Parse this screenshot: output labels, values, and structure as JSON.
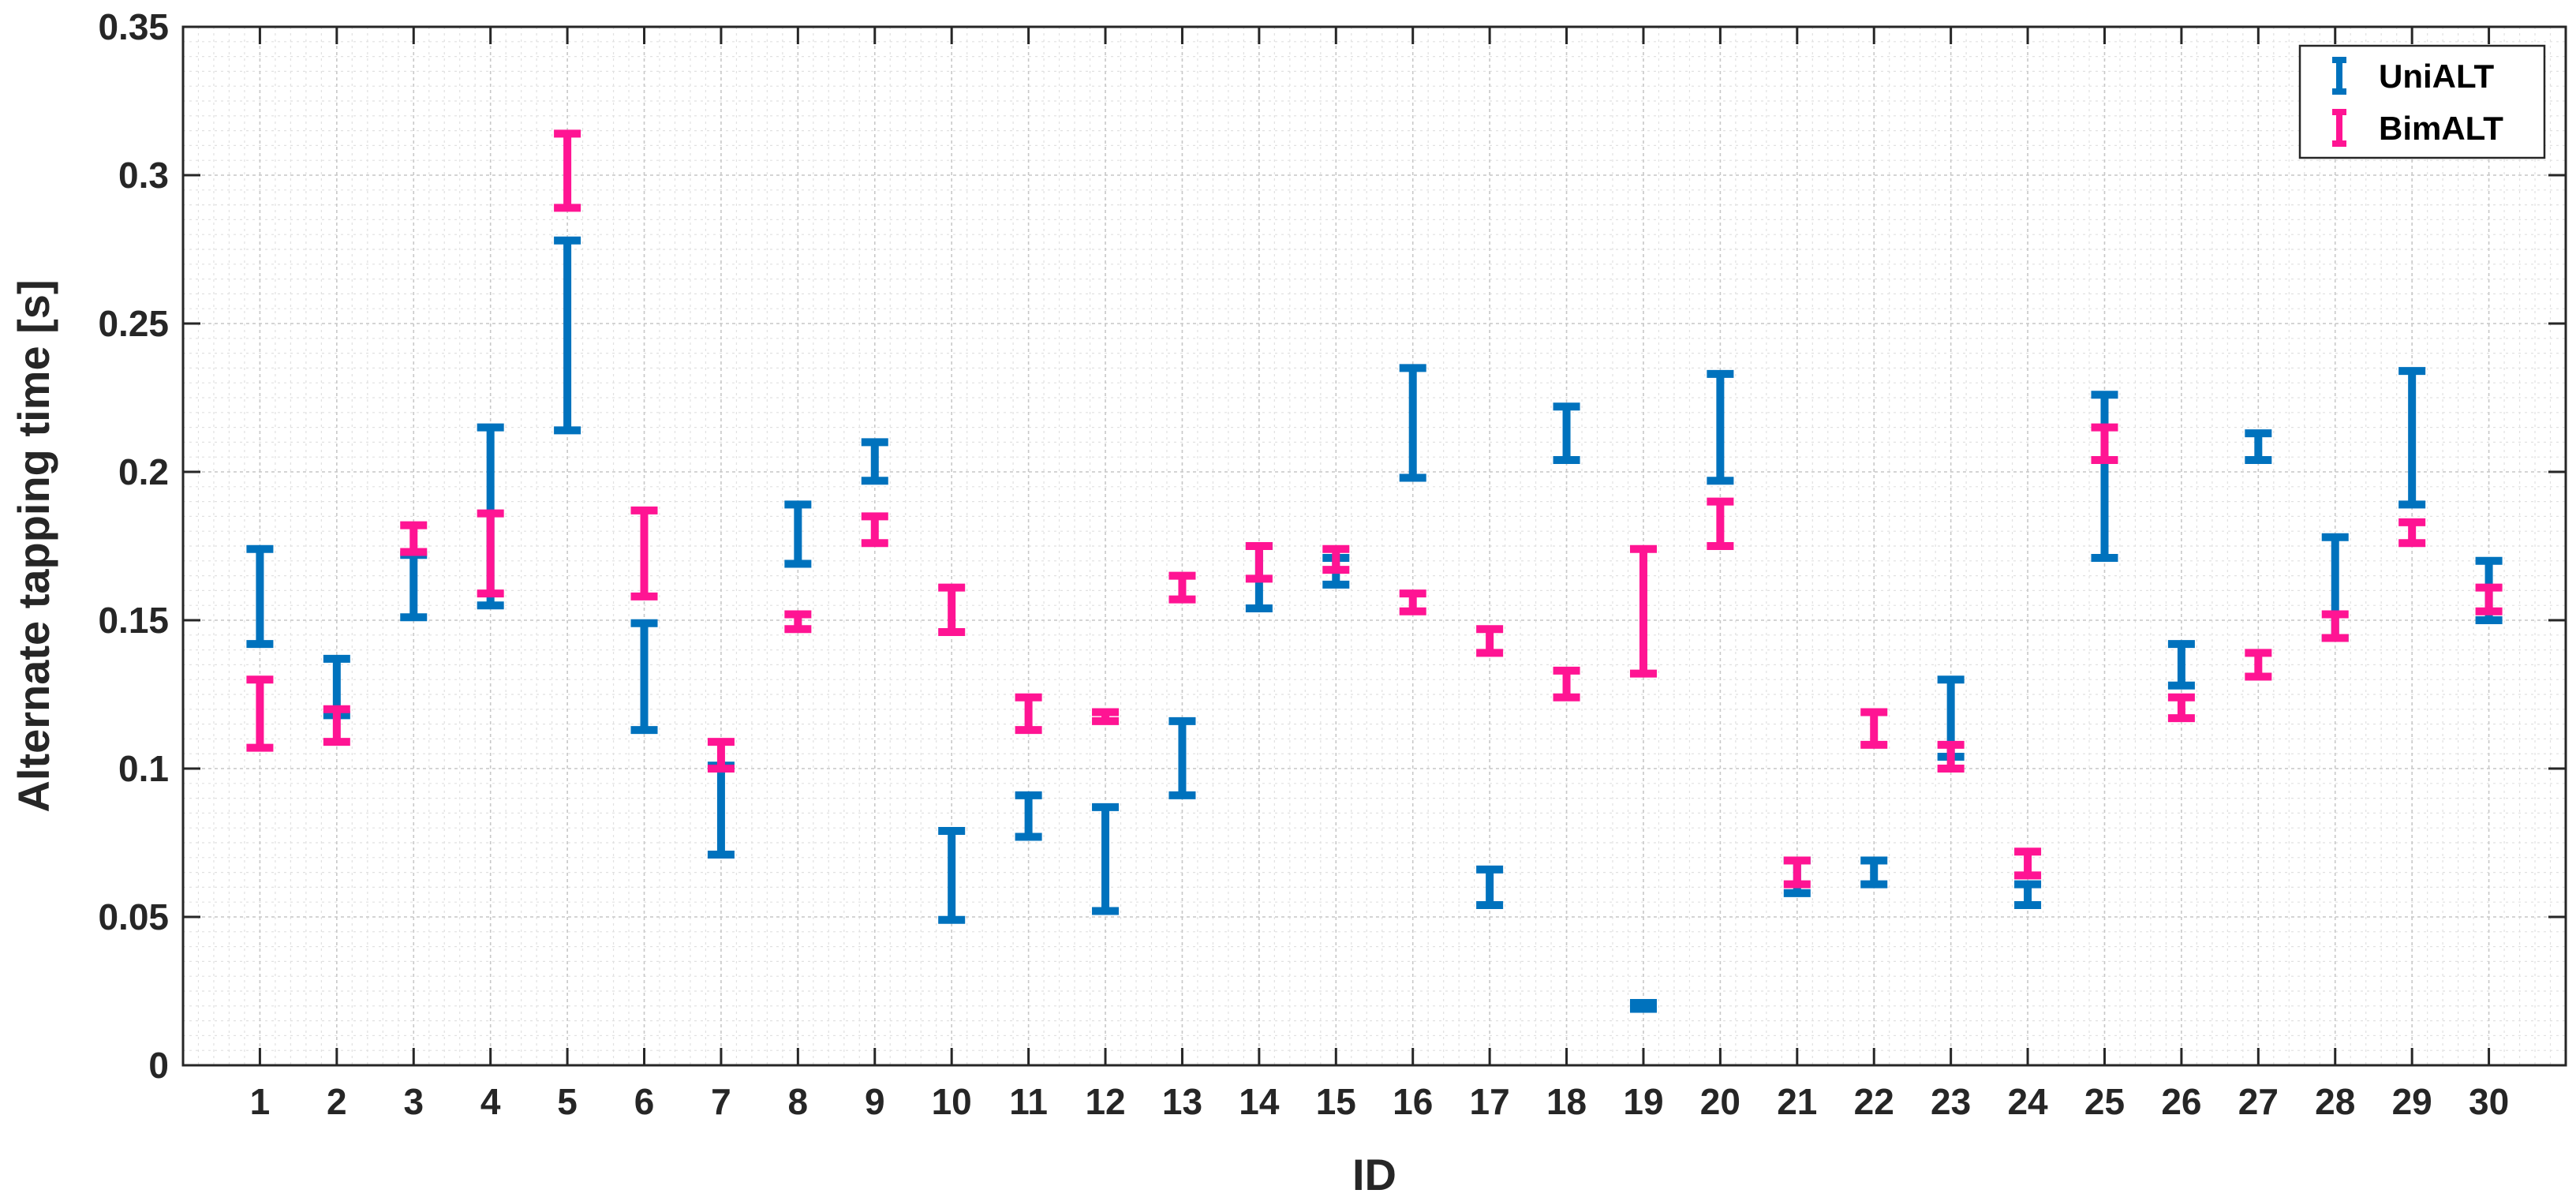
{
  "chart_data": {
    "type": "errorbar",
    "title": "",
    "xlabel": "ID",
    "ylabel": "Alternate tapping time [s]",
    "xlim": [
      0,
      31
    ],
    "ylim": [
      0,
      0.35
    ],
    "x_ticks": [
      "1",
      "2",
      "3",
      "4",
      "5",
      "6",
      "7",
      "8",
      "9",
      "10",
      "11",
      "12",
      "13",
      "14",
      "15",
      "16",
      "17",
      "18",
      "19",
      "20",
      "21",
      "22",
      "23",
      "24",
      "25",
      "26",
      "27",
      "28",
      "29",
      "30"
    ],
    "y_ticks": [
      "0",
      "0.05",
      "0.1",
      "0.15",
      "0.2",
      "0.25",
      "0.3",
      "0.35"
    ],
    "y_tick_values": [
      0,
      0.05,
      0.1,
      0.15,
      0.2,
      0.25,
      0.3,
      0.35
    ],
    "grid": true,
    "minor_grid": true,
    "legend_position": "top-right",
    "series": [
      {
        "name": "UniALT",
        "color": "#0072bd",
        "x": [
          1,
          2,
          3,
          4,
          5,
          6,
          7,
          8,
          9,
          10,
          11,
          12,
          13,
          14,
          15,
          16,
          17,
          18,
          19,
          20,
          21,
          22,
          23,
          24,
          25,
          26,
          27,
          28,
          29,
          30
        ],
        "low": [
          0.142,
          0.118,
          0.151,
          0.155,
          0.214,
          0.113,
          0.071,
          0.169,
          0.197,
          0.049,
          0.077,
          0.052,
          0.091,
          0.154,
          0.162,
          0.198,
          0.054,
          0.204,
          0.019,
          0.197,
          0.058,
          0.061,
          0.104,
          0.054,
          0.171,
          0.128,
          0.204,
          0.144,
          0.189,
          0.15
        ],
        "high": [
          0.174,
          0.137,
          0.172,
          0.215,
          0.278,
          0.149,
          0.101,
          0.189,
          0.21,
          0.079,
          0.091,
          0.087,
          0.116,
          0.175,
          0.171,
          0.235,
          0.066,
          0.222,
          0.021,
          0.233,
          0.069,
          0.069,
          0.13,
          0.061,
          0.226,
          0.142,
          0.213,
          0.178,
          0.234,
          0.17
        ]
      },
      {
        "name": "BimALT",
        "color": "#ff1493",
        "x": [
          1,
          2,
          3,
          4,
          5,
          6,
          7,
          8,
          9,
          10,
          11,
          12,
          13,
          14,
          15,
          16,
          17,
          18,
          19,
          20,
          21,
          22,
          23,
          24,
          25,
          26,
          27,
          28,
          29,
          30
        ],
        "low": [
          0.107,
          0.109,
          0.173,
          0.159,
          0.289,
          0.158,
          0.1,
          0.147,
          0.176,
          0.146,
          0.113,
          0.116,
          0.157,
          0.164,
          0.167,
          0.153,
          0.139,
          0.124,
          0.132,
          0.175,
          0.061,
          0.108,
          0.1,
          0.064,
          0.204,
          0.117,
          0.131,
          0.144,
          0.176,
          0.153
        ],
        "high": [
          0.13,
          0.12,
          0.182,
          0.186,
          0.314,
          0.187,
          0.109,
          0.152,
          0.185,
          0.161,
          0.124,
          0.119,
          0.165,
          0.175,
          0.174,
          0.159,
          0.147,
          0.133,
          0.174,
          0.19,
          0.069,
          0.119,
          0.108,
          0.072,
          0.215,
          0.124,
          0.139,
          0.152,
          0.183,
          0.161
        ]
      }
    ]
  }
}
